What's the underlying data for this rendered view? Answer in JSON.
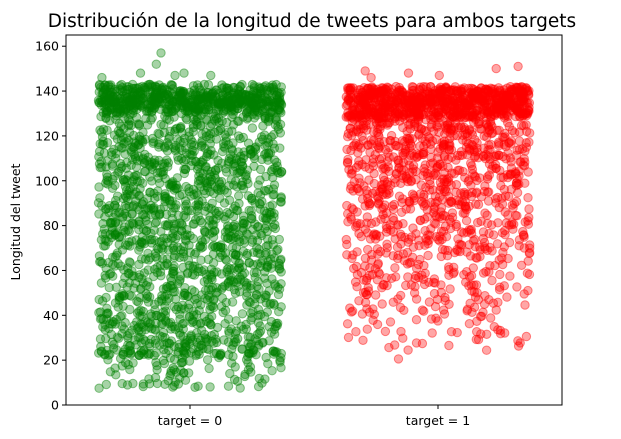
{
  "chart_data": {
    "type": "scatter",
    "title": "Distribución de la longitud de tweets para ambos targets",
    "xlabel": "",
    "ylabel": "Longitud del tweet",
    "categories": [
      "target = 0",
      "target = 1"
    ],
    "ylim": [
      0,
      165
    ],
    "yticks": [
      0,
      20,
      40,
      60,
      80,
      100,
      120,
      140,
      160
    ],
    "grid": false,
    "legend": "none",
    "point_alpha": 0.35,
    "series": [
      {
        "category": "target = 0",
        "color": "#008000",
        "count": 2200,
        "min": 7,
        "max": 157,
        "dense_band": [
          130,
          143
        ],
        "dense_share": 0.22,
        "jitter_width": 0.37,
        "outliers": [
          157,
          152,
          148,
          148,
          147,
          147,
          146
        ]
      },
      {
        "category": "target = 1",
        "color": "#ff0000",
        "count": 1800,
        "min": 14,
        "max": 151,
        "dense_band": [
          128,
          142
        ],
        "dense_share": 0.32,
        "jitter_width": 0.37,
        "outliers": [
          151,
          150,
          149,
          148,
          147,
          146
        ]
      }
    ]
  }
}
